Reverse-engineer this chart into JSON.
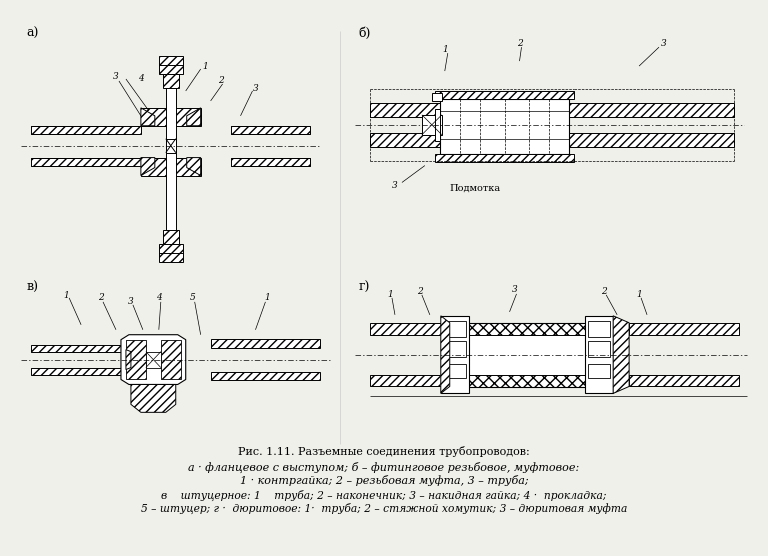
{
  "bg_color": "#f0f0eb",
  "caption_line1": "Рис. 1.11. Разъемные соединения трубопроводов:",
  "caption_line2": "а · фланцевое с выступом; б – фитинговое резьбовое, муфтовое:",
  "caption_line3": "1 · контргайка; 2 – резьбовая муфта, 3 – труба;",
  "caption_line4": "в    штуцерное: 1    труба; 2 – наконечник; 3 – накидная гайка; 4 ·  прокладка;",
  "caption_line5": "5 – штуцер; г ·  дюритовое: 1·  труба; 2 – стяжной хомутик; 3 – дюритовая муфта",
  "font_size_caption": 8.0,
  "font_size_label": 9,
  "font_size_num": 6.5
}
